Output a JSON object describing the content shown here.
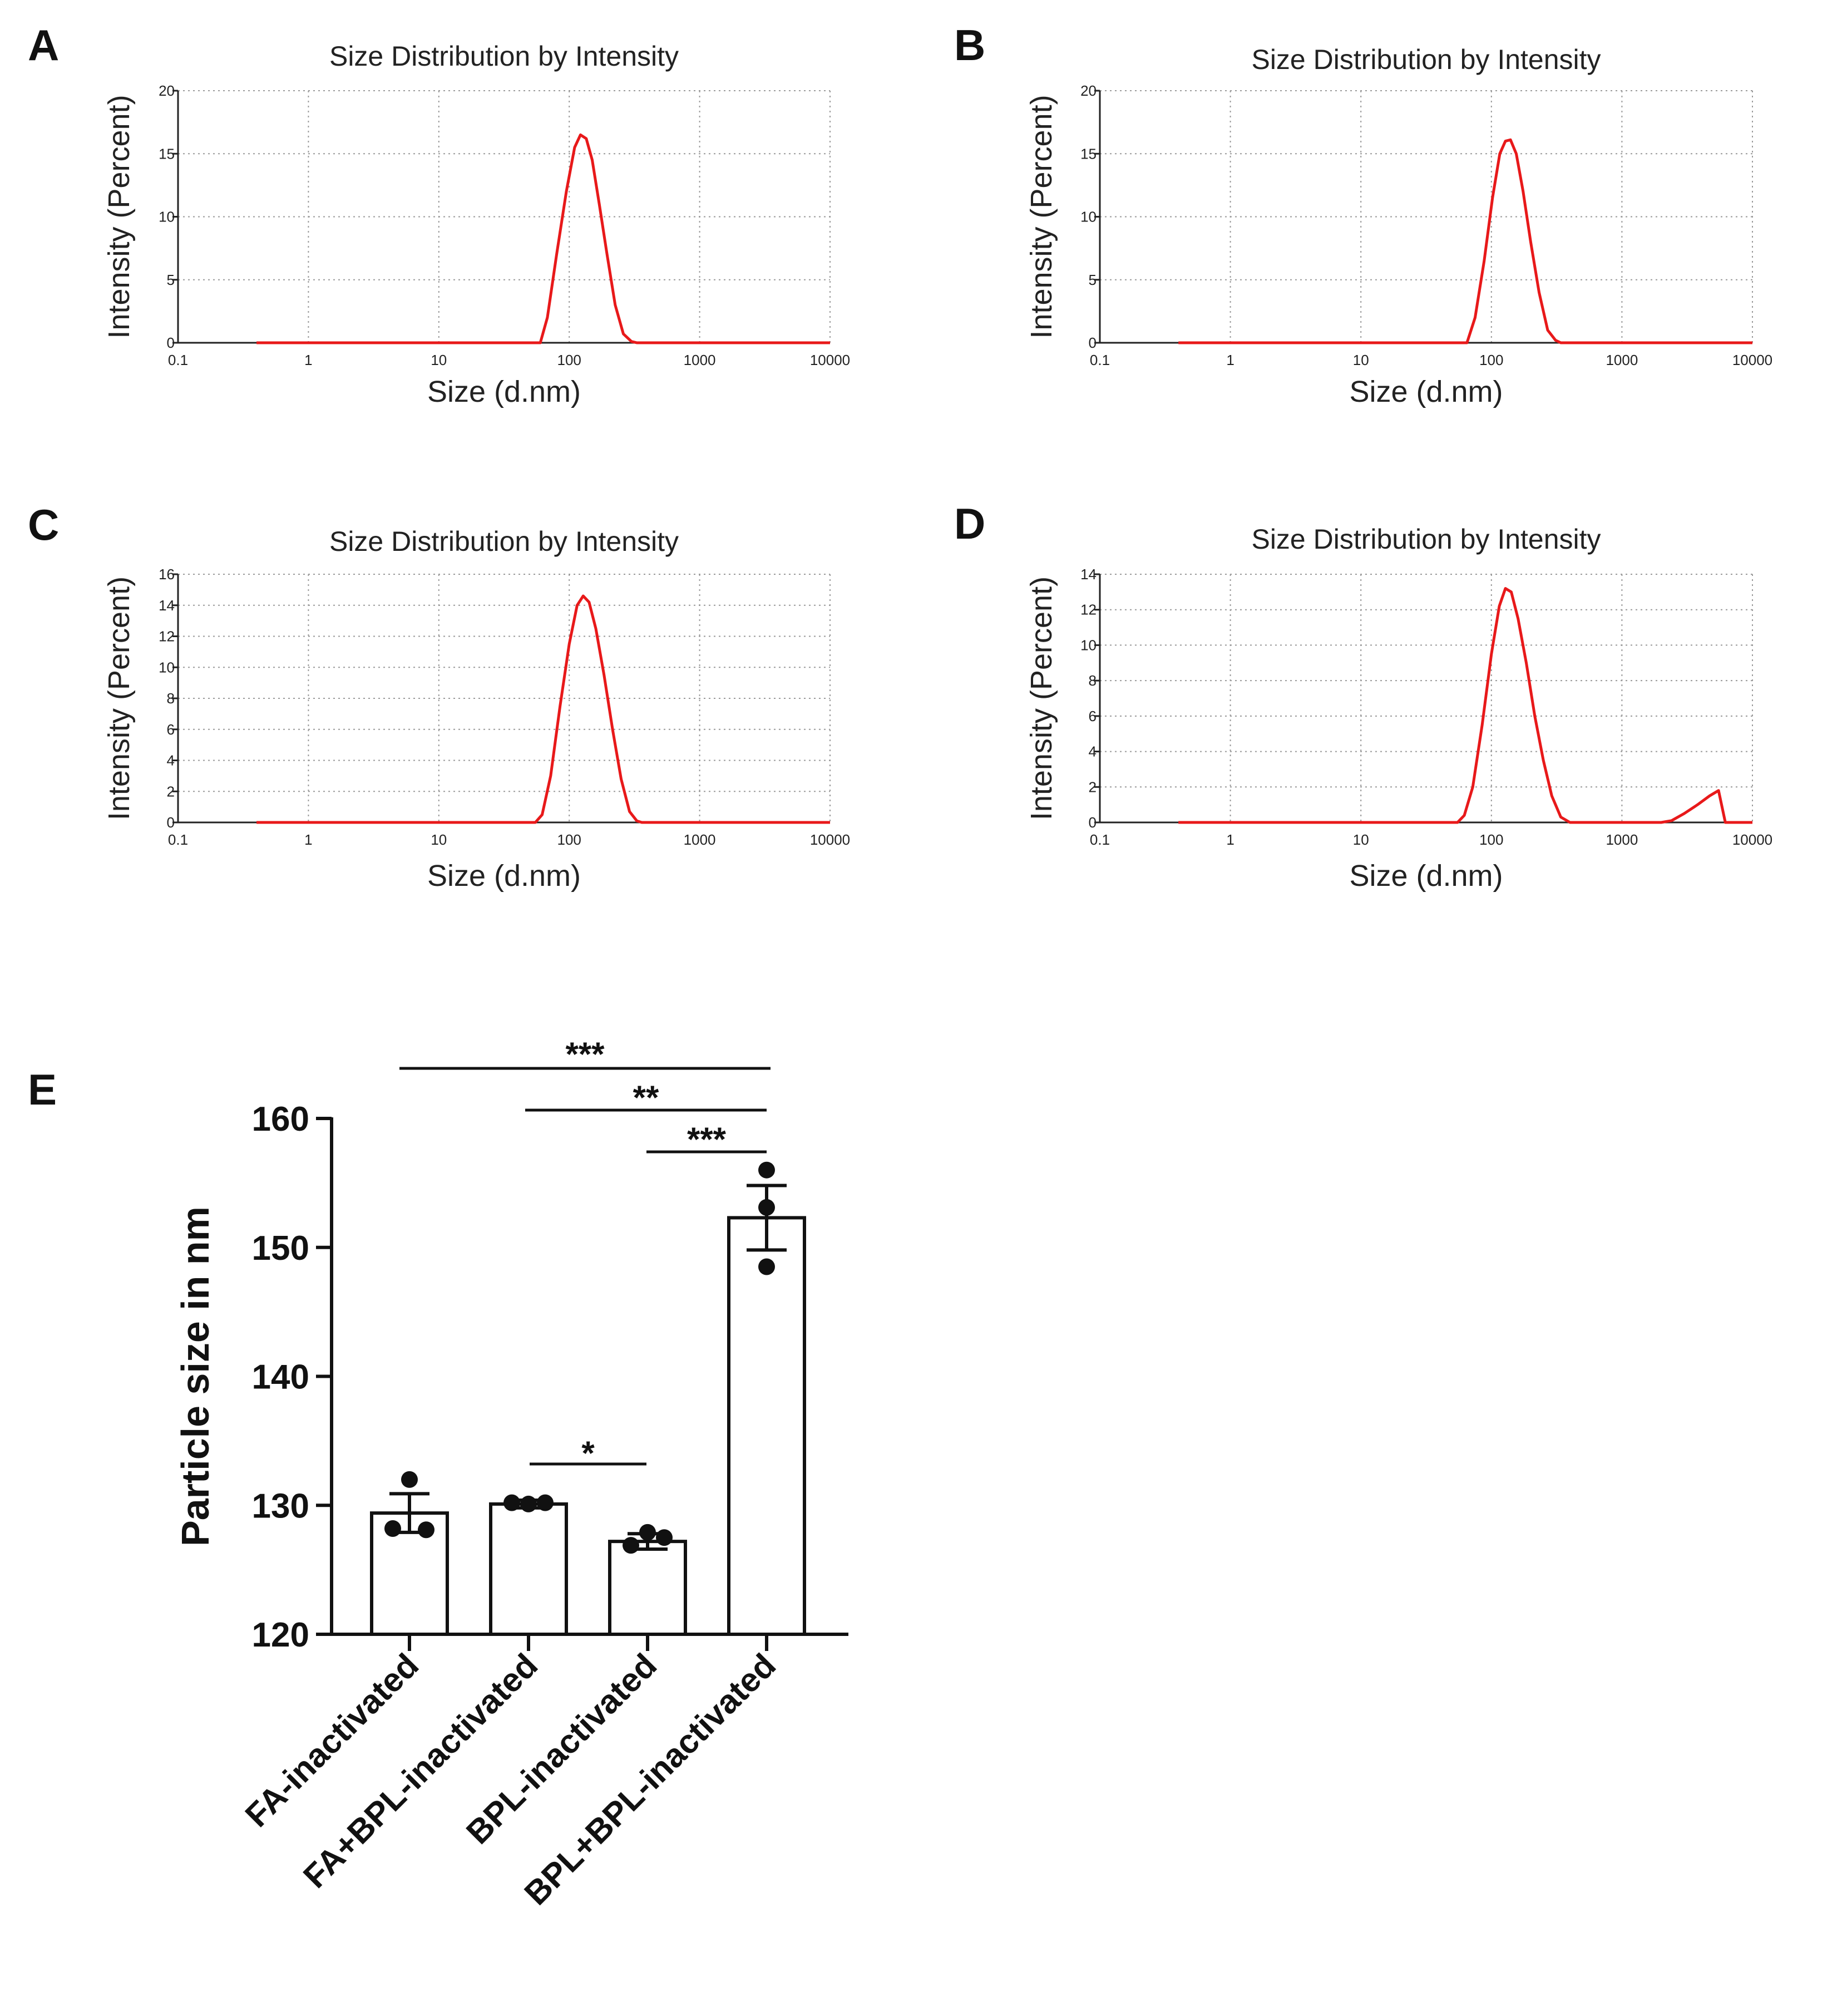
{
  "chart_data": [
    {
      "panel": "A",
      "type": "line",
      "title": "Size Distribution by Intensity",
      "xlabel": "Size (d.nm)",
      "ylabel": "Intensity (Percent)",
      "xscale": "log",
      "xlim": [
        0.1,
        10000
      ],
      "ylim": [
        0,
        20
      ],
      "xticks": [
        "0.1",
        "1",
        "10",
        "100",
        "1000",
        "10000"
      ],
      "yticks": [
        "0",
        "5",
        "10",
        "15",
        "20"
      ],
      "series": [
        {
          "name": "Intensity",
          "color": "#e8191a",
          "x": [
            0.4,
            60,
            68,
            80,
            95,
            110,
            122,
            135,
            150,
            170,
            195,
            225,
            260,
            300,
            330,
            10000
          ],
          "y": [
            0,
            0,
            2,
            7,
            12,
            15.5,
            16.5,
            16.2,
            14.5,
            11,
            7,
            3,
            0.7,
            0.1,
            0,
            0
          ]
        }
      ]
    },
    {
      "panel": "B",
      "type": "line",
      "title": "Size Distribution by Intensity",
      "xlabel": "Size (d.nm)",
      "ylabel": "Intensity (Percent)",
      "xscale": "log",
      "xlim": [
        0.1,
        10000
      ],
      "ylim": [
        0,
        20
      ],
      "xticks": [
        "0.1",
        "1",
        "10",
        "100",
        "1000",
        "10000"
      ],
      "yticks": [
        "0",
        "5",
        "10",
        "15",
        "20"
      ],
      "series": [
        {
          "name": "Intensity",
          "color": "#e8191a",
          "x": [
            0.4,
            65,
            75,
            88,
            102,
            116,
            128,
            140,
            155,
            175,
            200,
            232,
            270,
            310,
            340,
            10000
          ],
          "y": [
            0,
            0,
            2,
            6.5,
            11.5,
            15,
            16,
            16.1,
            15,
            12,
            8,
            4,
            1,
            0.2,
            0,
            0
          ]
        }
      ]
    },
    {
      "panel": "C",
      "type": "line",
      "title": "Size Distribution by Intensity",
      "xlabel": "Size (d.nm)",
      "ylabel": "Intensity (Percent)",
      "xscale": "log",
      "xlim": [
        0.1,
        10000
      ],
      "ylim": [
        0,
        16
      ],
      "xticks": [
        "0.1",
        "1",
        "10",
        "100",
        "1000",
        "10000"
      ],
      "yticks": [
        "0",
        "2",
        "4",
        "6",
        "8",
        "10",
        "12",
        "14",
        "16"
      ],
      "series": [
        {
          "name": "Intensity",
          "color": "#e8191a",
          "x": [
            0.4,
            55,
            62,
            72,
            85,
            100,
            115,
            128,
            142,
            160,
            185,
            215,
            250,
            290,
            330,
            360,
            10000
          ],
          "y": [
            0,
            0,
            0.5,
            3,
            7.5,
            11.5,
            14,
            14.6,
            14.2,
            12.5,
            9.5,
            6,
            2.8,
            0.7,
            0.1,
            0,
            0
          ]
        }
      ]
    },
    {
      "panel": "D",
      "type": "line",
      "title": "Size Distribution by Intensity",
      "xlabel": "Size (d.nm)",
      "ylabel": "Intensity (Percent)",
      "xscale": "log",
      "xlim": [
        0.1,
        10000
      ],
      "ylim": [
        0,
        14
      ],
      "xticks": [
        "0.1",
        "1",
        "10",
        "100",
        "1000",
        "10000"
      ],
      "yticks": [
        "0",
        "2",
        "4",
        "6",
        "8",
        "10",
        "12",
        "14"
      ],
      "series": [
        {
          "name": "Intensity",
          "color": "#e8191a",
          "x": [
            0.4,
            55,
            62,
            72,
            85,
            100,
            115,
            128,
            142,
            160,
            185,
            215,
            250,
            290,
            340,
            400,
            480,
            2000,
            2400,
            3000,
            3800,
            4700,
            5500,
            6200,
            10000
          ],
          "y": [
            0,
            0,
            0.4,
            2,
            5.5,
            9.5,
            12.2,
            13.2,
            13,
            11.5,
            9,
            6,
            3.5,
            1.5,
            0.3,
            0,
            0,
            0,
            0.1,
            0.5,
            1,
            1.5,
            1.8,
            0,
            0
          ]
        }
      ]
    },
    {
      "panel": "E",
      "type": "bar",
      "ylabel": "Particle size in nm",
      "ylim": [
        120,
        160
      ],
      "yticks": [
        "120",
        "130",
        "140",
        "150",
        "160"
      ],
      "categories": [
        "FA-inactivated",
        "FA+BPL-inactivated",
        "BPL-inactivated",
        "BPL+BPL-inactivated"
      ],
      "values": [
        129.4,
        130.1,
        127.2,
        152.3
      ],
      "errors": [
        1.5,
        0.3,
        0.6,
        2.5
      ],
      "points": [
        [
          132.0,
          128.2,
          128.1
        ],
        [
          130.2,
          130.1,
          130.2
        ],
        [
          127.9,
          126.9,
          127.5
        ],
        [
          156.0,
          153.1,
          148.5
        ]
      ],
      "significance": [
        {
          "from": 0,
          "to": 3,
          "label": "***"
        },
        {
          "from": 1,
          "to": 3,
          "label": "**"
        },
        {
          "from": 2,
          "to": 3,
          "label": "***"
        },
        {
          "from": 1,
          "to": 2,
          "label": "*"
        }
      ]
    }
  ]
}
